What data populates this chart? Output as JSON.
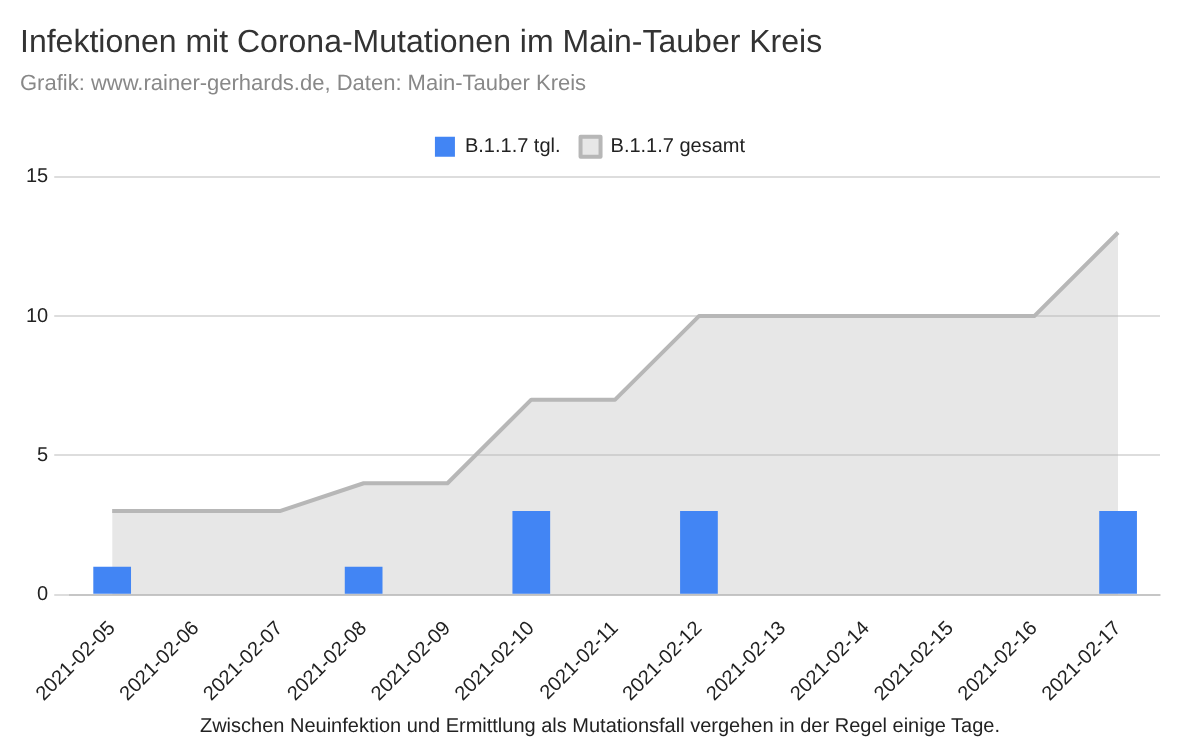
{
  "chart_data": {
    "type": "bar",
    "title": "Infektionen mit Corona-Mutationen im Main-Tauber Kreis",
    "subtitle": "Grafik: www.rainer-gerhards.de, Daten: Main-Tauber Kreis",
    "categories": [
      "2021-02-05",
      "2021-02-06",
      "2021-02-07",
      "2021-02-08",
      "2021-02-09",
      "2021-02-10",
      "2021-02-11",
      "2021-02-12",
      "2021-02-13",
      "2021-02-14",
      "2021-02-15",
      "2021-02-16",
      "2021-02-17"
    ],
    "series": [
      {
        "name": "B.1.1.7 tgl.",
        "color": "#4285f4",
        "values": [
          1,
          0,
          0,
          1,
          0,
          3,
          0,
          3,
          0,
          0,
          0,
          0,
          3
        ]
      },
      {
        "name": "B.1.1.7 gesamt",
        "type": "area",
        "color": "#b7b7b7",
        "values": [
          3,
          3,
          3,
          4,
          4,
          7,
          7,
          10,
          10,
          10,
          10,
          10,
          13
        ]
      }
    ],
    "ylim": [
      0,
      15
    ],
    "yticks": [
      0,
      5,
      10,
      15
    ],
    "grid": "y",
    "legend": "top",
    "annotations": [
      "Zwischen Neuinfektion und Ermittlung als Mutationsfall vergehen in der Regel einige Tage."
    ]
  }
}
